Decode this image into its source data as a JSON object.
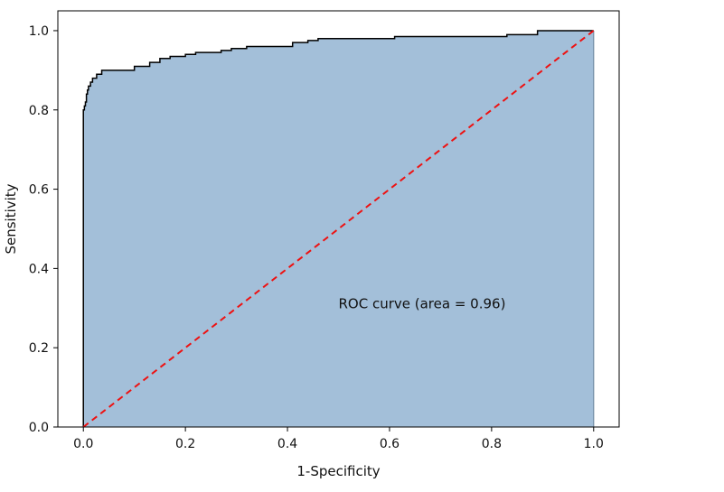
{
  "chart_data": {
    "type": "area",
    "title": "",
    "xlabel": "1-Specificity",
    "ylabel": "Sensitivity",
    "xlim": [
      -0.05,
      1.05
    ],
    "ylim": [
      0.0,
      1.05
    ],
    "xticks": [
      "0.0",
      "0.2",
      "0.4",
      "0.6",
      "0.8",
      "1.0"
    ],
    "yticks": [
      "0.0",
      "0.2",
      "0.4",
      "0.6",
      "0.8",
      "1.0"
    ],
    "grid": false,
    "annotation": "ROC curve (area = 0.96)",
    "series": [
      {
        "fill_color": "#a3bfd9",
        "line_color": "#000000",
        "x": [
          0.0,
          0.0,
          0.002,
          0.002,
          0.004,
          0.004,
          0.006,
          0.006,
          0.008,
          0.008,
          0.01,
          0.01,
          0.014,
          0.014,
          0.018,
          0.018,
          0.022,
          0.022,
          0.026,
          0.026,
          0.03,
          0.03,
          0.036,
          0.036,
          0.042,
          0.042,
          0.1,
          0.1,
          0.13,
          0.13,
          0.15,
          0.15,
          0.17,
          0.17,
          0.2,
          0.2,
          0.22,
          0.22,
          0.27,
          0.27,
          0.29,
          0.29,
          0.32,
          0.32,
          0.41,
          0.41,
          0.44,
          0.44,
          0.46,
          0.46,
          0.61,
          0.61,
          0.83,
          0.83,
          0.89,
          0.89,
          1.0
        ],
        "y": [
          0.0,
          0.8,
          0.8,
          0.81,
          0.81,
          0.82,
          0.82,
          0.84,
          0.84,
          0.85,
          0.85,
          0.86,
          0.86,
          0.87,
          0.87,
          0.88,
          0.88,
          0.88,
          0.88,
          0.89,
          0.89,
          0.89,
          0.89,
          0.9,
          0.9,
          0.9,
          0.9,
          0.91,
          0.91,
          0.92,
          0.92,
          0.93,
          0.93,
          0.935,
          0.935,
          0.94,
          0.94,
          0.945,
          0.945,
          0.95,
          0.95,
          0.955,
          0.955,
          0.96,
          0.96,
          0.97,
          0.97,
          0.975,
          0.975,
          0.98,
          0.98,
          0.985,
          0.985,
          0.99,
          0.99,
          1.0,
          1.0
        ]
      },
      {
        "style": "dashed",
        "line_color": "#ee1111",
        "x": [
          0.0,
          1.0
        ],
        "y": [
          0.0,
          1.0
        ]
      }
    ]
  }
}
